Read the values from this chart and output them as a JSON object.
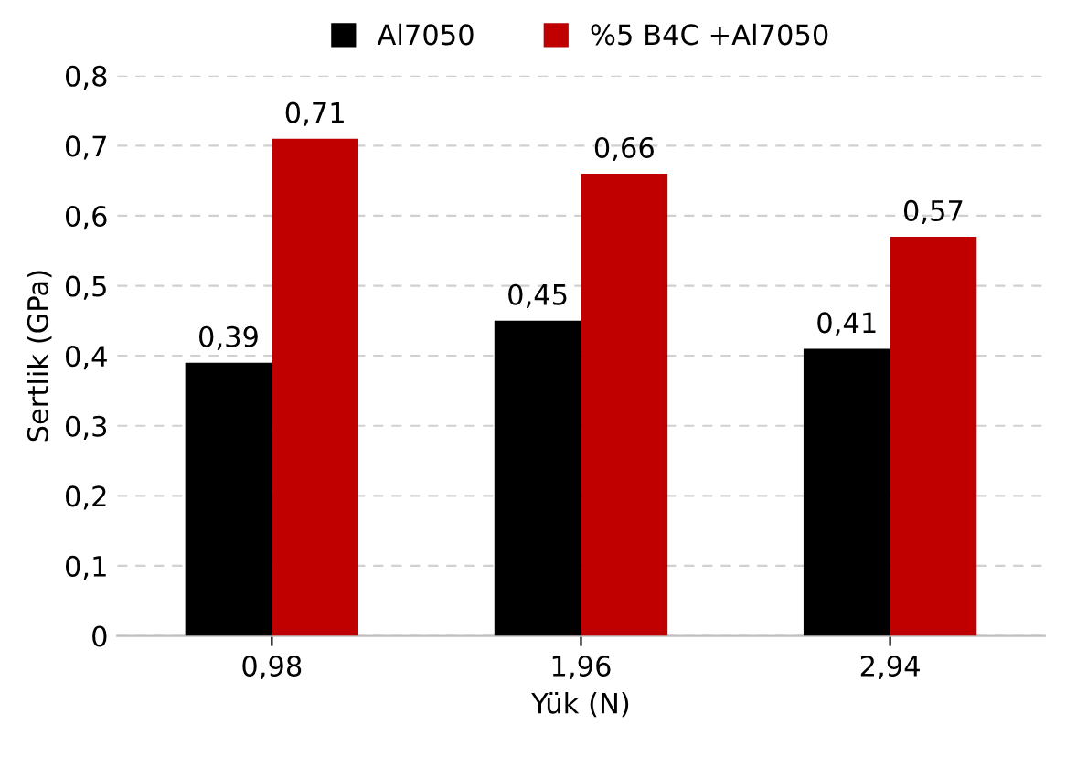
{
  "chart_data": {
    "type": "bar",
    "xlabel": "Yük (N)",
    "ylabel": "Sertlik (GPa)",
    "categories": [
      "0,98",
      "1,96",
      "2,94"
    ],
    "series": [
      {
        "name": "Al7050",
        "color": "#000000",
        "values": [
          0.39,
          0.45,
          0.41
        ],
        "value_labels": [
          "0,39",
          "0,45",
          "0,41"
        ]
      },
      {
        "name": "%5 B4C +Al7050",
        "color": "#c00000",
        "values": [
          0.71,
          0.66,
          0.57
        ],
        "value_labels": [
          "0,71",
          "0,66",
          "0,57"
        ]
      }
    ],
    "ylim": [
      0,
      0.8
    ],
    "yticks": [
      0,
      {
        "value": 0.1,
        "label": "0,1"
      },
      {
        "value": 0.2,
        "label": "0,2"
      },
      {
        "value": 0.3,
        "label": "0,3"
      },
      {
        "value": 0.4,
        "label": "0,4"
      },
      {
        "value": 0.5,
        "label": "0,5"
      },
      {
        "value": 0.6,
        "label": "0,6"
      },
      {
        "value": 0.7,
        "label": "0,7"
      },
      {
        "value": 0.8,
        "label": "0,8"
      }
    ],
    "grid": "y",
    "legend": "top"
  }
}
